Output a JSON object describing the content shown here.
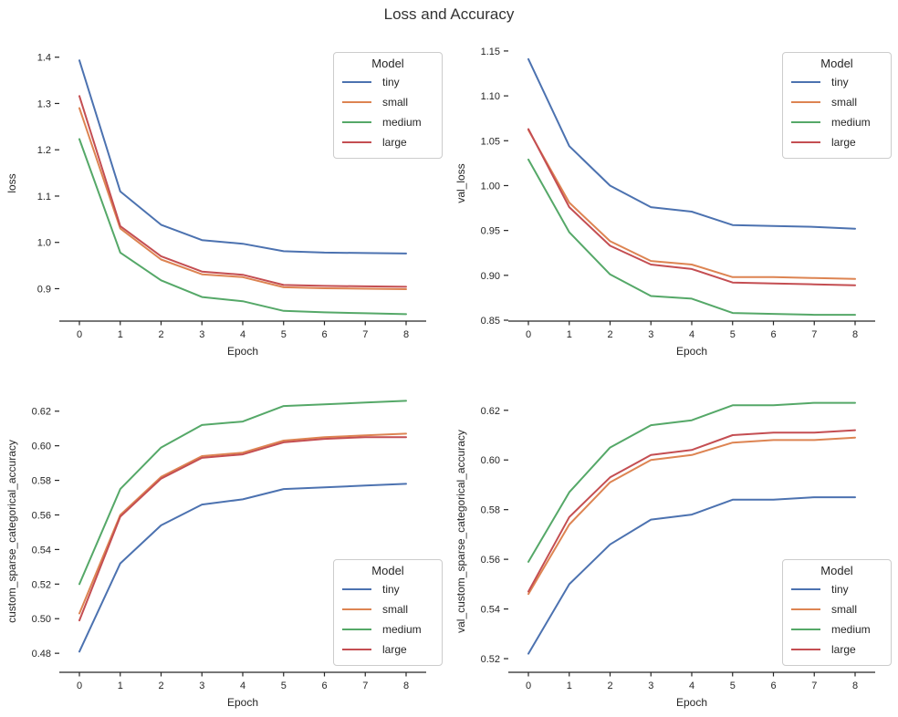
{
  "title": "Loss and Accuracy",
  "xlabel": "Epoch",
  "colors": {
    "tiny": "#4C72B0",
    "small": "#DD8452",
    "medium": "#55A868",
    "large": "#C44E52",
    "text": "#262626",
    "axis": "#262626",
    "legend_border": "#cccccc"
  },
  "legend": {
    "title": "Model",
    "entries": [
      "tiny",
      "small",
      "medium",
      "large"
    ]
  },
  "chart_data": [
    {
      "type": "line",
      "name": "loss",
      "ylabel": "loss",
      "xlabel": "Epoch",
      "x": [
        0,
        1,
        2,
        3,
        4,
        5,
        6,
        7,
        8
      ],
      "xtick_labels": [
        "0",
        "1",
        "2",
        "3",
        "4",
        "5",
        "6",
        "7",
        "8"
      ],
      "ylim": [
        0.83,
        1.425
      ],
      "ytick_values": [
        1.4,
        1.3,
        1.2,
        1.1,
        1.0,
        0.9
      ],
      "ytick_labels": [
        "1.4",
        "1.3",
        "1.2",
        "1.1",
        "1.0",
        "0.9"
      ],
      "grid": false,
      "legend_position": "upper-right",
      "series": [
        {
          "name": "tiny",
          "color": "#4C72B0",
          "values": [
            1.393,
            1.11,
            1.038,
            1.005,
            0.997,
            0.981,
            0.978,
            0.977,
            0.976
          ]
        },
        {
          "name": "small",
          "color": "#DD8452",
          "values": [
            1.29,
            1.03,
            0.963,
            0.931,
            0.925,
            0.903,
            0.901,
            0.9,
            0.899
          ]
        },
        {
          "name": "medium",
          "color": "#55A868",
          "values": [
            1.223,
            0.978,
            0.918,
            0.882,
            0.873,
            0.852,
            0.849,
            0.847,
            0.845
          ]
        },
        {
          "name": "large",
          "color": "#C44E52",
          "values": [
            1.316,
            1.035,
            0.97,
            0.937,
            0.93,
            0.908,
            0.906,
            0.905,
            0.904
          ]
        }
      ]
    },
    {
      "type": "line",
      "name": "val_loss",
      "ylabel": "val_loss",
      "xlabel": "Epoch",
      "x": [
        0,
        1,
        2,
        3,
        4,
        5,
        6,
        7,
        8
      ],
      "xtick_labels": [
        "0",
        "1",
        "2",
        "3",
        "4",
        "5",
        "6",
        "7",
        "8"
      ],
      "ylim": [
        0.849,
        1.156
      ],
      "ytick_values": [
        1.15,
        1.1,
        1.05,
        1.0,
        0.95,
        0.9,
        0.85
      ],
      "ytick_labels": [
        "1.15",
        "1.10",
        "1.05",
        "1.00",
        "0.95",
        "0.90",
        "0.85"
      ],
      "grid": false,
      "legend_position": "upper-right",
      "series": [
        {
          "name": "tiny",
          "color": "#4C72B0",
          "values": [
            1.141,
            1.044,
            1.0,
            0.976,
            0.971,
            0.956,
            0.955,
            0.954,
            0.952
          ]
        },
        {
          "name": "small",
          "color": "#DD8452",
          "values": [
            1.062,
            0.981,
            0.938,
            0.916,
            0.912,
            0.898,
            0.898,
            0.897,
            0.896
          ]
        },
        {
          "name": "medium",
          "color": "#55A868",
          "values": [
            1.029,
            0.948,
            0.901,
            0.877,
            0.874,
            0.858,
            0.857,
            0.856,
            0.856
          ]
        },
        {
          "name": "large",
          "color": "#C44E52",
          "values": [
            1.063,
            0.976,
            0.933,
            0.912,
            0.907,
            0.892,
            0.891,
            0.89,
            0.889
          ]
        }
      ]
    },
    {
      "type": "line",
      "name": "custom_sparse_categorical_accuracy",
      "ylabel": "custom_sparse_categorical_accuracy",
      "xlabel": "Epoch",
      "x": [
        0,
        1,
        2,
        3,
        4,
        5,
        6,
        7,
        8
      ],
      "xtick_labels": [
        "0",
        "1",
        "2",
        "3",
        "4",
        "5",
        "6",
        "7",
        "8"
      ],
      "ylim": [
        0.469,
        0.632
      ],
      "ytick_values": [
        0.62,
        0.6,
        0.58,
        0.56,
        0.54,
        0.52,
        0.5,
        0.48
      ],
      "ytick_labels": [
        "0.62",
        "0.60",
        "0.58",
        "0.56",
        "0.54",
        "0.52",
        "0.50",
        "0.48"
      ],
      "grid": false,
      "legend_position": "lower-right",
      "series": [
        {
          "name": "tiny",
          "color": "#4C72B0",
          "values": [
            0.481,
            0.532,
            0.554,
            0.566,
            0.569,
            0.575,
            0.576,
            0.577,
            0.578
          ]
        },
        {
          "name": "small",
          "color": "#DD8452",
          "values": [
            0.503,
            0.56,
            0.582,
            0.594,
            0.596,
            0.603,
            0.605,
            0.606,
            0.607
          ]
        },
        {
          "name": "medium",
          "color": "#55A868",
          "values": [
            0.52,
            0.575,
            0.599,
            0.612,
            0.614,
            0.623,
            0.624,
            0.625,
            0.626
          ]
        },
        {
          "name": "large",
          "color": "#C44E52",
          "values": [
            0.499,
            0.559,
            0.581,
            0.593,
            0.595,
            0.602,
            0.604,
            0.605,
            0.605
          ]
        }
      ]
    },
    {
      "type": "line",
      "name": "val_custom_sparse_categorical_accuracy",
      "ylabel": "val_custom_sparse_categorical_accuracy",
      "xlabel": "Epoch",
      "x": [
        0,
        1,
        2,
        3,
        4,
        5,
        6,
        7,
        8
      ],
      "xtick_labels": [
        "0",
        "1",
        "2",
        "3",
        "4",
        "5",
        "6",
        "7",
        "8"
      ],
      "ylim": [
        0.5145,
        0.628
      ],
      "ytick_values": [
        0.62,
        0.6,
        0.58,
        0.56,
        0.54,
        0.52
      ],
      "ytick_labels": [
        "0.62",
        "0.60",
        "0.58",
        "0.56",
        "0.54",
        "0.52"
      ],
      "grid": false,
      "legend_position": "lower-right",
      "series": [
        {
          "name": "tiny",
          "color": "#4C72B0",
          "values": [
            0.522,
            0.55,
            0.566,
            0.576,
            0.578,
            0.584,
            0.584,
            0.585,
            0.585
          ]
        },
        {
          "name": "small",
          "color": "#DD8452",
          "values": [
            0.546,
            0.574,
            0.591,
            0.6,
            0.602,
            0.607,
            0.608,
            0.608,
            0.609
          ]
        },
        {
          "name": "medium",
          "color": "#55A868",
          "values": [
            0.559,
            0.587,
            0.605,
            0.614,
            0.616,
            0.622,
            0.622,
            0.623,
            0.623
          ]
        },
        {
          "name": "large",
          "color": "#C44E52",
          "values": [
            0.547,
            0.577,
            0.593,
            0.602,
            0.604,
            0.61,
            0.611,
            0.611,
            0.612
          ]
        }
      ]
    }
  ]
}
